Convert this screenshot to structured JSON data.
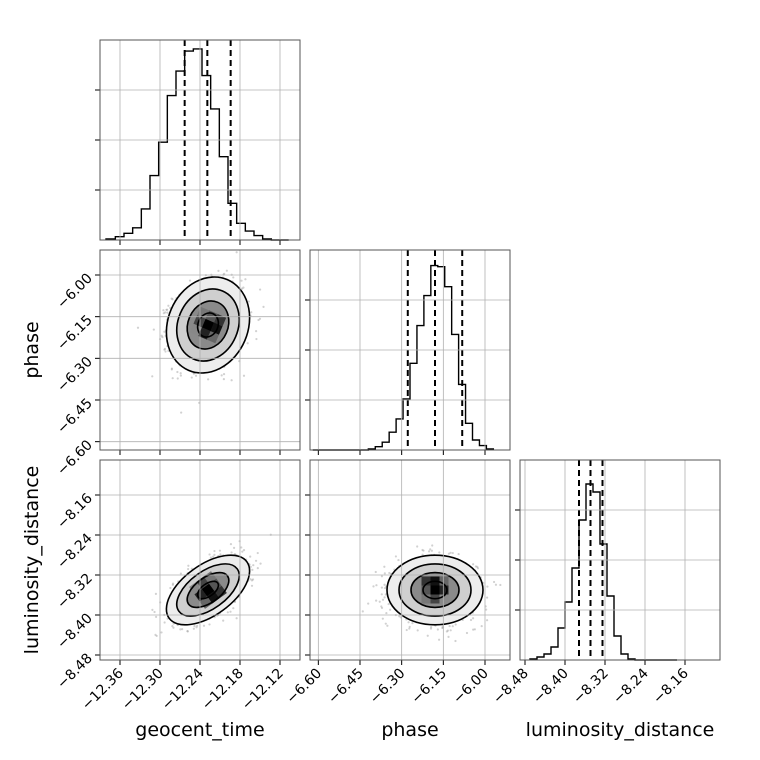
{
  "chart_data": {
    "type": "scatter",
    "subtype": "corner-plot",
    "parameters": [
      "geocent_time",
      "phase",
      "luminosity_distance"
    ],
    "axes": {
      "geocent_time": {
        "label": "geocent_time",
        "range": [
          -12.39,
          -12.09
        ],
        "ticks": [
          -12.36,
          -12.3,
          -12.24,
          -12.18,
          -12.12
        ],
        "tick_labels": [
          "−12.36",
          "−12.30",
          "−12.24",
          "−12.18",
          "−12.12"
        ]
      },
      "phase": {
        "label": "phase",
        "range": [
          -6.63,
          -5.91
        ],
        "ticks": [
          -6.6,
          -6.45,
          -6.3,
          -6.15,
          -6.0
        ],
        "tick_labels": [
          "−6.60",
          "−6.45",
          "−6.30",
          "−6.15",
          "−6.00"
        ]
      },
      "luminosity_distance": {
        "label": "luminosity_distance",
        "range": [
          -8.49,
          -8.09
        ],
        "ticks": [
          -8.48,
          -8.4,
          -8.32,
          -8.24,
          -8.16
        ],
        "tick_labels": [
          "−8.48",
          "−8.40",
          "−8.32",
          "−8.24",
          "−8.16"
        ]
      }
    },
    "histograms": [
      {
        "parameter": "geocent_time",
        "bins": [
          -12.381,
          -12.367,
          -12.354,
          -12.341,
          -12.328,
          -12.315,
          -12.302,
          -12.289,
          -12.276,
          -12.263,
          -12.25,
          -12.237,
          -12.224,
          -12.211,
          -12.198,
          -12.185,
          -12.172,
          -12.159,
          -12.146,
          -12.133,
          -12.12,
          -12.107
        ],
        "counts": [
          1,
          3,
          6,
          11,
          28,
          58,
          88,
          130,
          152,
          170,
          172,
          148,
          118,
          75,
          33,
          15,
          8,
          4,
          1,
          0,
          0
        ],
        "quantiles": [
          -12.263,
          -12.229,
          -12.194
        ],
        "y_max": 180
      },
      {
        "parameter": "phase",
        "bins": [
          -6.62,
          -6.595,
          -6.57,
          -6.545,
          -6.52,
          -6.495,
          -6.47,
          -6.445,
          -6.42,
          -6.395,
          -6.37,
          -6.345,
          -6.32,
          -6.295,
          -6.27,
          -6.245,
          -6.22,
          -6.195,
          -6.17,
          -6.145,
          -6.12,
          -6.095,
          -6.07,
          -6.045,
          -6.02,
          -5.995,
          -5.97
        ],
        "counts": [
          0,
          0,
          0,
          0,
          0,
          0,
          0,
          0,
          1,
          3,
          7,
          16,
          28,
          46,
          78,
          112,
          139,
          166,
          165,
          147,
          104,
          59,
          24,
          9,
          4,
          1
        ],
        "quantiles": [
          -6.278,
          -6.18,
          -6.082
        ],
        "y_max": 180
      },
      {
        "parameter": "luminosity_distance",
        "bins": [
          -8.47,
          -8.456,
          -8.442,
          -8.428,
          -8.414,
          -8.4,
          -8.386,
          -8.372,
          -8.358,
          -8.344,
          -8.33,
          -8.316,
          -8.302,
          -8.288,
          -8.274,
          -8.26,
          -8.246,
          -8.232,
          -8.218,
          -8.204,
          -8.19,
          -8.176
        ],
        "counts": [
          1,
          3,
          6,
          13,
          32,
          58,
          92,
          140,
          176,
          168,
          116,
          64,
          24,
          6,
          1,
          0,
          0,
          0,
          0,
          0,
          0
        ],
        "quantiles": [
          -8.372,
          -8.349,
          -8.325
        ],
        "y_max": 200
      }
    ],
    "density_panels": [
      {
        "x": "geocent_time",
        "y": "phase",
        "center": [
          -12.228,
          -6.18
        ],
        "sigma": [
          0.026,
          0.072
        ],
        "correlation": 0.15
      },
      {
        "x": "geocent_time",
        "y": "luminosity_distance",
        "center": [
          -12.228,
          -8.35
        ],
        "sigma": [
          0.026,
          0.029
        ],
        "correlation": 0.55
      },
      {
        "x": "phase",
        "y": "luminosity_distance",
        "center": [
          -6.18,
          -8.35
        ],
        "sigma": [
          0.072,
          0.029
        ],
        "correlation": 0.0
      }
    ],
    "contour_levels_sigma": [
      0.5,
      1.0,
      1.5,
      2.0
    ],
    "grid": true,
    "legend": "none"
  }
}
